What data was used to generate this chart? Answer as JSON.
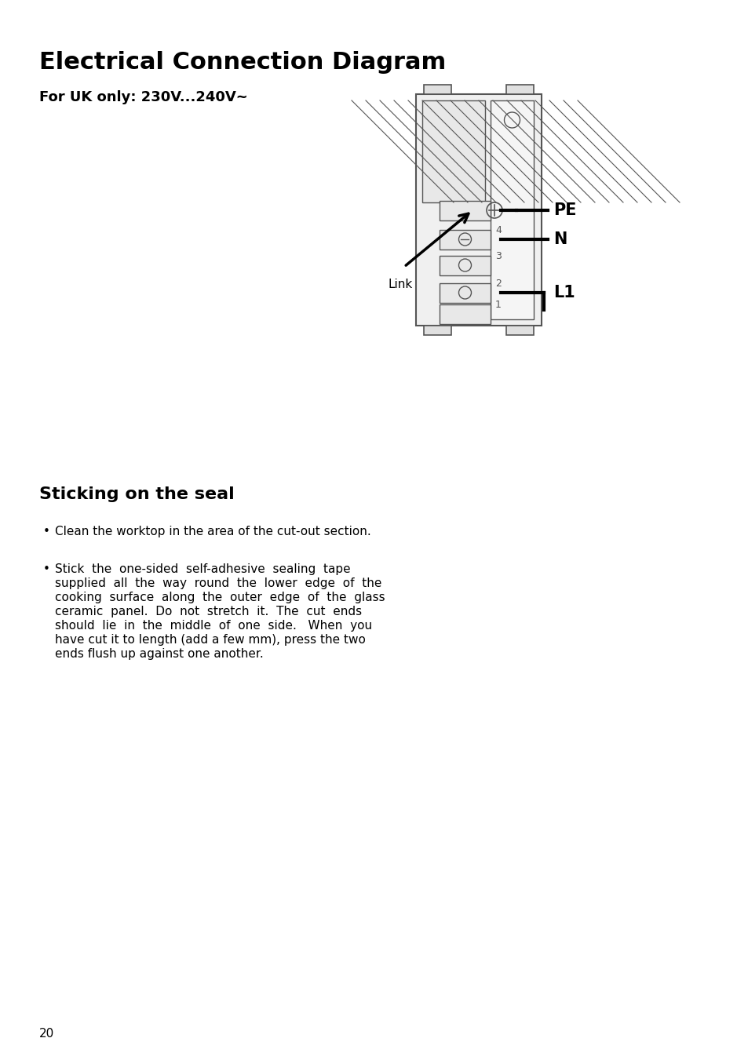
{
  "title": "Electrical Connection Diagram",
  "subtitle": "For UK only: 230V...240V~",
  "section2_title": "Sticking on the seal",
  "bullet1": "Clean the worktop in the area of the cut-out section.",
  "bullet2_lines": [
    "Stick  the  one-sided  self-adhesive  sealing  tape",
    "supplied  all  the  way  round  the  lower  edge  of  the",
    "cooking  surface  along  the  outer  edge  of  the  glass",
    "ceramic  panel.  Do  not  stretch  it.  The  cut  ends",
    "should  lie  in  the  middle  of  one  side.   When  you",
    "have cut it to length (add a few mm), press the two",
    "ends flush up against one another."
  ],
  "page_number": "20",
  "background_color": "#ffffff",
  "text_color": "#000000",
  "connector_color": "#555555",
  "label_PE": "PE",
  "label_N": "N",
  "label_L1": "L1",
  "label_Link": "Link"
}
